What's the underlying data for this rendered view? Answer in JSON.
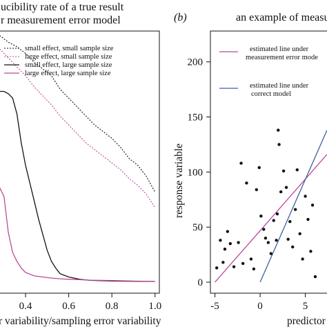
{
  "colors": {
    "black": "#111111",
    "magenta": "#b8499a",
    "blue": "#3e5f9e",
    "points": "#111111"
  },
  "chart_data": [
    {
      "type": "line",
      "title_line1": "ucibility rate of a true result",
      "title_line2": "r measurement error model",
      "xlabel": "r variability/sampling error variability",
      "ylabel": "",
      "xlim": [
        0.28,
        1.02
      ],
      "ylim": [
        0,
        1.12
      ],
      "x_ticks": [
        0.4,
        0.6,
        0.8,
        1.0
      ],
      "x_tick_labels": [
        "0.4",
        "0.6",
        "0.8",
        "1.0"
      ],
      "legend_position": "top-right",
      "series": [
        {
          "name": "small effect, small sample size",
          "style": "dotted",
          "color_key": "black",
          "x": [
            0.28,
            0.32,
            0.36,
            0.4,
            0.44,
            0.48,
            0.52,
            0.56,
            0.6,
            0.64,
            0.68,
            0.72,
            0.76,
            0.8,
            0.84,
            0.88,
            0.92,
            0.96,
            1.0
          ],
          "y": [
            1.1,
            1.07,
            1.05,
            1.02,
            0.98,
            0.95,
            0.92,
            0.86,
            0.82,
            0.78,
            0.74,
            0.7,
            0.67,
            0.64,
            0.6,
            0.55,
            0.52,
            0.47,
            0.4
          ]
        },
        {
          "name": "large effect, small sample size",
          "style": "dotted",
          "color_key": "magenta",
          "x": [
            0.28,
            0.32,
            0.36,
            0.4,
            0.44,
            0.48,
            0.52,
            0.56,
            0.6,
            0.64,
            0.68,
            0.72,
            0.76,
            0.8,
            0.84,
            0.88,
            0.92,
            0.96,
            1.0
          ],
          "y": [
            1.04,
            1.0,
            0.96,
            0.92,
            0.87,
            0.83,
            0.79,
            0.74,
            0.7,
            0.66,
            0.62,
            0.59,
            0.56,
            0.53,
            0.5,
            0.46,
            0.43,
            0.39,
            0.33
          ]
        },
        {
          "name": "small effect, large sample size",
          "style": "solid",
          "color_key": "black",
          "x": [
            0.28,
            0.3,
            0.32,
            0.34,
            0.36,
            0.38,
            0.4,
            0.42,
            0.44,
            0.46,
            0.48,
            0.5,
            0.52,
            0.54,
            0.56,
            0.6,
            0.65,
            0.7,
            0.8,
            0.9,
            1.0
          ],
          "y": [
            0.85,
            0.85,
            0.84,
            0.82,
            0.75,
            0.62,
            0.52,
            0.44,
            0.36,
            0.28,
            0.21,
            0.14,
            0.09,
            0.06,
            0.035,
            0.02,
            0.01,
            0.005,
            0.002,
            0.001,
            0.0
          ]
        },
        {
          "name": "large effect, large sample size",
          "style": "solid",
          "color_key": "magenta",
          "x": [
            0.28,
            0.3,
            0.32,
            0.34,
            0.36,
            0.38,
            0.4,
            0.44,
            0.48,
            0.52,
            0.56,
            0.6,
            0.65,
            0.7,
            0.8,
            0.9,
            1.0
          ],
          "y": [
            0.42,
            0.38,
            0.22,
            0.13,
            0.09,
            0.06,
            0.04,
            0.025,
            0.02,
            0.015,
            0.012,
            0.01,
            0.008,
            0.006,
            0.004,
            0.002,
            0.0
          ]
        }
      ]
    },
    {
      "type": "scatter",
      "panel_label": "(b)",
      "title": "an example of measu",
      "xlabel": "predictor",
      "ylabel": "response variable",
      "xlim": [
        -5.5,
        7.4
      ],
      "ylim": [
        -10,
        228
      ],
      "x_ticks": [
        -5,
        0,
        5
      ],
      "x_tick_labels": [
        "-5",
        "0",
        "5"
      ],
      "y_ticks": [
        0,
        50,
        100,
        150,
        200
      ],
      "y_tick_labels": [
        "0",
        "50",
        "100",
        "150",
        "200"
      ],
      "legend_position": "top-left",
      "points": {
        "x": [
          -4.8,
          -4.4,
          -4.1,
          -3.9,
          -3.6,
          -3.3,
          -2.9,
          -2.4,
          -2.1,
          -1.9,
          -1.5,
          -1.0,
          -0.7,
          -0.4,
          -0.1,
          0.1,
          0.4,
          0.6,
          0.9,
          1.2,
          1.5,
          1.8,
          1.9,
          2.0,
          2.1,
          2.3,
          2.6,
          2.9,
          3.1,
          3.3,
          3.6,
          3.9,
          4.1,
          4.4,
          4.7,
          5.0,
          5.3,
          5.6,
          5.8,
          6.1
        ],
        "y": [
          13,
          38,
          18,
          30,
          46,
          35,
          14,
          36,
          108,
          17,
          90,
          21,
          12,
          84,
          104,
          60,
          48,
          40,
          36,
          26,
          56,
          38,
          62,
          138,
          125,
          82,
          101,
          86,
          39,
          55,
          32,
          66,
          102,
          44,
          21,
          78,
          57,
          28,
          70,
          5
        ]
      },
      "series": [
        {
          "name": "estimated line under measurement error mode",
          "name_line1": "estimated line under",
          "name_line2": "measurement error mode",
          "color_key": "magenta",
          "x": [
            -5.0,
            7.4
          ],
          "y": [
            0,
            116
          ]
        },
        {
          "name": "estimated line under correct model",
          "name_line1": "estimated line under",
          "name_line2": "correct model",
          "color_key": "blue",
          "x": [
            0.0,
            7.4
          ],
          "y": [
            0,
            138
          ]
        }
      ]
    }
  ]
}
